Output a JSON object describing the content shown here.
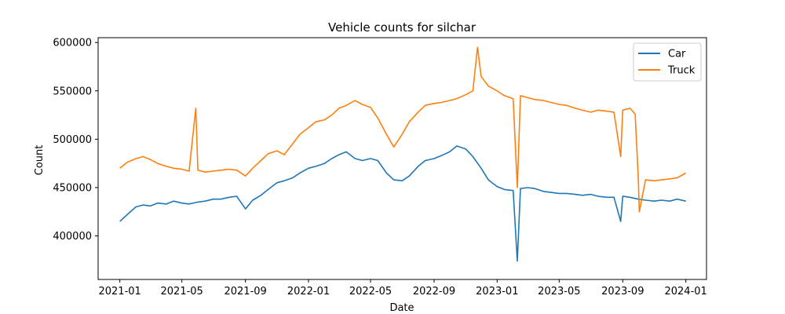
{
  "chart_data": {
    "type": "line",
    "title": "Vehicle counts for silchar",
    "xlabel": "Date",
    "ylabel": "Count",
    "x_range": [
      "2020-11-20",
      "2024-02-10"
    ],
    "ylim": [
      355000,
      605000
    ],
    "x_ticks": [
      "2021-01",
      "2021-05",
      "2021-09",
      "2022-01",
      "2022-05",
      "2022-09",
      "2023-01",
      "2023-05",
      "2023-09",
      "2024-01"
    ],
    "y_ticks": [
      400000,
      450000,
      500000,
      550000,
      600000
    ],
    "grid": false,
    "legend": {
      "placement": "top-right"
    },
    "series": [
      {
        "name": "Car",
        "color": "#1f77b4",
        "points": [
          [
            "2021-01-01",
            415000
          ],
          [
            "2021-01-15",
            422000
          ],
          [
            "2021-02-01",
            430000
          ],
          [
            "2021-02-15",
            432000
          ],
          [
            "2021-03-01",
            431000
          ],
          [
            "2021-03-15",
            434000
          ],
          [
            "2021-04-01",
            433000
          ],
          [
            "2021-04-15",
            436000
          ],
          [
            "2021-05-01",
            434000
          ],
          [
            "2021-05-15",
            433000
          ],
          [
            "2021-06-01",
            435000
          ],
          [
            "2021-06-15",
            436000
          ],
          [
            "2021-07-01",
            438000
          ],
          [
            "2021-07-15",
            438000
          ],
          [
            "2021-08-01",
            440000
          ],
          [
            "2021-08-15",
            441000
          ],
          [
            "2021-09-01",
            428000
          ],
          [
            "2021-09-15",
            437000
          ],
          [
            "2021-10-01",
            442000
          ],
          [
            "2021-10-15",
            448000
          ],
          [
            "2021-11-01",
            455000
          ],
          [
            "2021-11-15",
            457000
          ],
          [
            "2021-12-01",
            460000
          ],
          [
            "2021-12-15",
            465000
          ],
          [
            "2022-01-01",
            470000
          ],
          [
            "2022-01-15",
            472000
          ],
          [
            "2022-02-01",
            475000
          ],
          [
            "2022-02-15",
            480000
          ],
          [
            "2022-03-01",
            484000
          ],
          [
            "2022-03-15",
            487000
          ],
          [
            "2022-04-01",
            480000
          ],
          [
            "2022-04-15",
            478000
          ],
          [
            "2022-05-01",
            480000
          ],
          [
            "2022-05-15",
            478000
          ],
          [
            "2022-06-01",
            465000
          ],
          [
            "2022-06-15",
            458000
          ],
          [
            "2022-07-01",
            457000
          ],
          [
            "2022-07-15",
            462000
          ],
          [
            "2022-08-01",
            472000
          ],
          [
            "2022-08-15",
            478000
          ],
          [
            "2022-09-01",
            480000
          ],
          [
            "2022-09-15",
            483000
          ],
          [
            "2022-10-01",
            487000
          ],
          [
            "2022-10-15",
            493000
          ],
          [
            "2022-11-01",
            490000
          ],
          [
            "2022-11-15",
            482000
          ],
          [
            "2022-12-01",
            470000
          ],
          [
            "2022-12-15",
            458000
          ],
          [
            "2023-01-01",
            451000
          ],
          [
            "2023-01-15",
            448000
          ],
          [
            "2023-02-01",
            447000
          ],
          [
            "2023-02-09",
            374000
          ],
          [
            "2023-02-15",
            449000
          ],
          [
            "2023-03-01",
            450000
          ],
          [
            "2023-03-15",
            449000
          ],
          [
            "2023-04-01",
            446000
          ],
          [
            "2023-04-15",
            445000
          ],
          [
            "2023-05-01",
            444000
          ],
          [
            "2023-05-15",
            444000
          ],
          [
            "2023-06-01",
            443000
          ],
          [
            "2023-06-15",
            442000
          ],
          [
            "2023-07-01",
            443000
          ],
          [
            "2023-07-15",
            441000
          ],
          [
            "2023-08-01",
            440000
          ],
          [
            "2023-08-15",
            440000
          ],
          [
            "2023-08-28",
            415000
          ],
          [
            "2023-09-01",
            441000
          ],
          [
            "2023-09-15",
            440000
          ],
          [
            "2023-10-01",
            438000
          ],
          [
            "2023-10-15",
            437000
          ],
          [
            "2023-11-01",
            436000
          ],
          [
            "2023-11-15",
            437000
          ],
          [
            "2023-12-01",
            436000
          ],
          [
            "2023-12-15",
            438000
          ],
          [
            "2024-01-01",
            436000
          ]
        ]
      },
      {
        "name": "Truck",
        "color": "#ff7f0e",
        "points": [
          [
            "2021-01-01",
            470000
          ],
          [
            "2021-01-15",
            476000
          ],
          [
            "2021-02-01",
            480000
          ],
          [
            "2021-02-15",
            482000
          ],
          [
            "2021-03-01",
            479000
          ],
          [
            "2021-03-15",
            475000
          ],
          [
            "2021-04-01",
            472000
          ],
          [
            "2021-04-15",
            470000
          ],
          [
            "2021-05-01",
            469000
          ],
          [
            "2021-05-15",
            467000
          ],
          [
            "2021-05-28",
            532000
          ],
          [
            "2021-06-01",
            468000
          ],
          [
            "2021-06-15",
            466000
          ],
          [
            "2021-07-01",
            467000
          ],
          [
            "2021-07-15",
            468000
          ],
          [
            "2021-08-01",
            469000
          ],
          [
            "2021-08-15",
            468000
          ],
          [
            "2021-09-01",
            462000
          ],
          [
            "2021-09-15",
            470000
          ],
          [
            "2021-10-01",
            478000
          ],
          [
            "2021-10-15",
            485000
          ],
          [
            "2021-11-01",
            488000
          ],
          [
            "2021-11-15",
            484000
          ],
          [
            "2021-12-01",
            495000
          ],
          [
            "2021-12-15",
            505000
          ],
          [
            "2022-01-01",
            512000
          ],
          [
            "2022-01-15",
            518000
          ],
          [
            "2022-02-01",
            520000
          ],
          [
            "2022-02-15",
            525000
          ],
          [
            "2022-03-01",
            532000
          ],
          [
            "2022-03-15",
            535000
          ],
          [
            "2022-04-01",
            540000
          ],
          [
            "2022-04-15",
            536000
          ],
          [
            "2022-05-01",
            533000
          ],
          [
            "2022-05-15",
            522000
          ],
          [
            "2022-06-01",
            505000
          ],
          [
            "2022-06-15",
            492000
          ],
          [
            "2022-07-01",
            505000
          ],
          [
            "2022-07-15",
            518000
          ],
          [
            "2022-08-01",
            528000
          ],
          [
            "2022-08-15",
            535000
          ],
          [
            "2022-09-01",
            537000
          ],
          [
            "2022-09-15",
            538000
          ],
          [
            "2022-10-01",
            540000
          ],
          [
            "2022-10-15",
            542000
          ],
          [
            "2022-11-01",
            546000
          ],
          [
            "2022-11-15",
            550000
          ],
          [
            "2022-11-24",
            595000
          ],
          [
            "2022-12-01",
            565000
          ],
          [
            "2022-12-15",
            555000
          ],
          [
            "2023-01-01",
            550000
          ],
          [
            "2023-01-15",
            545000
          ],
          [
            "2023-02-01",
            542000
          ],
          [
            "2023-02-09",
            450000
          ],
          [
            "2023-02-15",
            545000
          ],
          [
            "2023-03-01",
            543000
          ],
          [
            "2023-03-15",
            541000
          ],
          [
            "2023-04-01",
            540000
          ],
          [
            "2023-04-15",
            538000
          ],
          [
            "2023-05-01",
            536000
          ],
          [
            "2023-05-15",
            535000
          ],
          [
            "2023-06-01",
            532000
          ],
          [
            "2023-06-15",
            530000
          ],
          [
            "2023-07-01",
            528000
          ],
          [
            "2023-07-15",
            530000
          ],
          [
            "2023-08-01",
            529000
          ],
          [
            "2023-08-15",
            528000
          ],
          [
            "2023-08-28",
            482000
          ],
          [
            "2023-09-01",
            530000
          ],
          [
            "2023-09-15",
            532000
          ],
          [
            "2023-09-25",
            526000
          ],
          [
            "2023-10-01",
            460000
          ],
          [
            "2023-10-03",
            425000
          ],
          [
            "2023-10-15",
            458000
          ],
          [
            "2023-11-01",
            457000
          ],
          [
            "2023-11-15",
            458000
          ],
          [
            "2023-12-01",
            459000
          ],
          [
            "2023-12-15",
            460000
          ],
          [
            "2024-01-01",
            465000
          ]
        ]
      }
    ]
  }
}
